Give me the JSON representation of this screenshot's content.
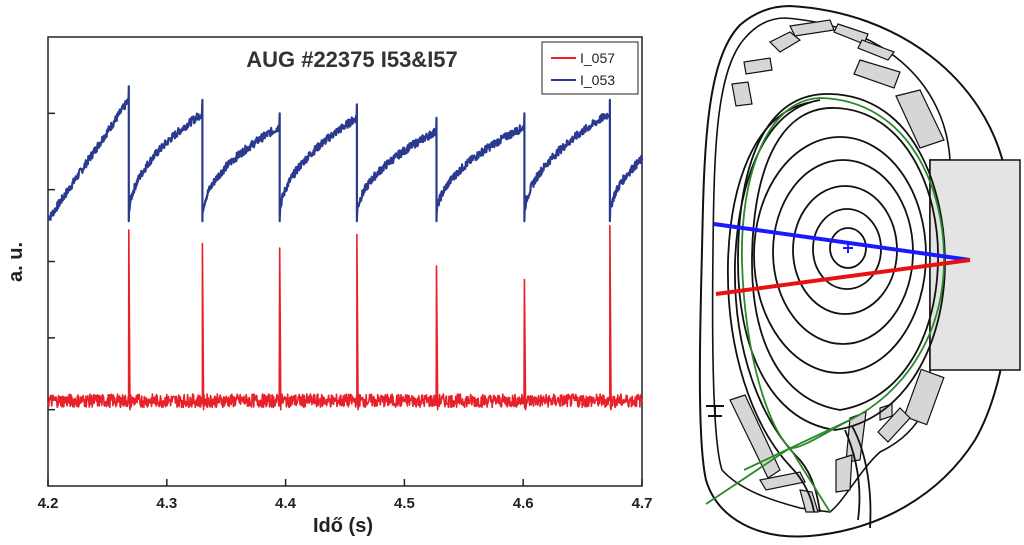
{
  "chart_data": {
    "type": "line",
    "title": "AUG #22375 I53&I57",
    "xlabel": "Idő (s)",
    "ylabel": "a. u.",
    "xlim": [
      4.2,
      4.7
    ],
    "xticks": [
      "4.2",
      "4.3",
      "4.4",
      "4.5",
      "4.6",
      "4.7"
    ],
    "legend_position": "top-right",
    "series": [
      {
        "name": "I_057",
        "color": "#e8202a",
        "baseline": 0.19,
        "spike_times": [
          4.268,
          4.33,
          4.395,
          4.46,
          4.527,
          4.601,
          4.673
        ],
        "spike_peaks": [
          0.57,
          0.54,
          0.53,
          0.56,
          0.49,
          0.46,
          0.58
        ]
      },
      {
        "name": "I_053",
        "color": "#2b3a8f",
        "crash_times": [
          4.268,
          4.33,
          4.395,
          4.46,
          4.527,
          4.601,
          4.673
        ],
        "crash_peaks": [
          0.86,
          0.83,
          0.8,
          0.82,
          0.79,
          0.8,
          0.83
        ],
        "trough": 0.6
      }
    ],
    "grid": false
  },
  "poloidal_cross_section": {
    "lines_of_sight": [
      {
        "name": "I_053",
        "color": "#1a1aff"
      },
      {
        "name": "I_057",
        "color": "#e81010"
      }
    ],
    "separatrix_color": "#2a8a2a"
  }
}
